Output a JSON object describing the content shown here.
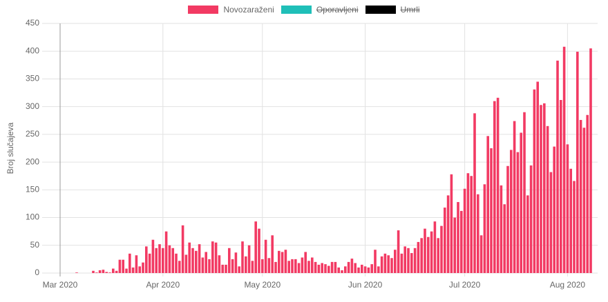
{
  "chart_data": {
    "type": "bar",
    "y_label": "Broj slučajeva",
    "categories": [
      "Mar 2020",
      null,
      null,
      null,
      null,
      null,
      null,
      null,
      null,
      null,
      null,
      null,
      null,
      null,
      null,
      null,
      null,
      null,
      null,
      null,
      null,
      null,
      null,
      null,
      null,
      null,
      null,
      null,
      null,
      null,
      null,
      "Apr 2020",
      null,
      null,
      null,
      null,
      null,
      null,
      null,
      null,
      null,
      null,
      null,
      null,
      null,
      null,
      null,
      null,
      null,
      null,
      null,
      null,
      null,
      null,
      null,
      null,
      null,
      null,
      null,
      null,
      null,
      "May 2020",
      null,
      null,
      null,
      null,
      null,
      null,
      null,
      null,
      null,
      null,
      null,
      null,
      null,
      null,
      null,
      null,
      null,
      null,
      null,
      null,
      null,
      null,
      null,
      null,
      null,
      null,
      null,
      null,
      null,
      null,
      "Jun 2020",
      null,
      null,
      null,
      null,
      null,
      null,
      null,
      null,
      null,
      null,
      null,
      null,
      null,
      null,
      null,
      null,
      null,
      null,
      null,
      null,
      null,
      null,
      null,
      null,
      null,
      null,
      null,
      null,
      null,
      "Jul 2020",
      null,
      null,
      null,
      null,
      null,
      null,
      null,
      null,
      null,
      null,
      null,
      null,
      null,
      null,
      null,
      null,
      null,
      null,
      null,
      null,
      null,
      null,
      null,
      null,
      null,
      null,
      null,
      null,
      null,
      null,
      "Aug 2020",
      null,
      null,
      null,
      null,
      null,
      null,
      null
    ],
    "series": [
      {
        "name": "Novozaraženi",
        "color": "#f23a63",
        "values": [
          0,
          0,
          0,
          0,
          0,
          1,
          0,
          0,
          0,
          0,
          4,
          1,
          5,
          6,
          2,
          1,
          8,
          4,
          24,
          24,
          8,
          35,
          10,
          32,
          12,
          19,
          48,
          35,
          60,
          45,
          52,
          45,
          75,
          50,
          45,
          35,
          22,
          86,
          33,
          55,
          45,
          40,
          52,
          28,
          38,
          25,
          57,
          55,
          32,
          15,
          15,
          45,
          25,
          37,
          12,
          57,
          30,
          50,
          22,
          93,
          80,
          25,
          60,
          27,
          68,
          20,
          40,
          38,
          42,
          22,
          25,
          25,
          18,
          28,
          38,
          22,
          28,
          20,
          15,
          18,
          16,
          13,
          20,
          20,
          10,
          5,
          12,
          20,
          26,
          18,
          10,
          15,
          12,
          10,
          16,
          42,
          12,
          30,
          35,
          32,
          27,
          42,
          77,
          35,
          48,
          45,
          36,
          45,
          56,
          63,
          80,
          65,
          75,
          93,
          63,
          85,
          118,
          140,
          178,
          100,
          128,
          112,
          152,
          180,
          175,
          288,
          142,
          68,
          160,
          247,
          225,
          310,
          316,
          158,
          124,
          193,
          222,
          274,
          218,
          253,
          290,
          140,
          194,
          331,
          345,
          303,
          306,
          265,
          182,
          228,
          383,
          312,
          408,
          232,
          188,
          166,
          399,
          276,
          262,
          285,
          405
        ]
      }
    ],
    "hidden_series": [
      {
        "name": "Oporavljeni",
        "color": "#1fbfb8"
      },
      {
        "name": "Umrli",
        "color": "#000000"
      }
    ],
    "ylim": [
      0,
      450
    ],
    "yticks": [
      0,
      50,
      100,
      150,
      200,
      250,
      300,
      350,
      400,
      450
    ],
    "grid": true
  }
}
